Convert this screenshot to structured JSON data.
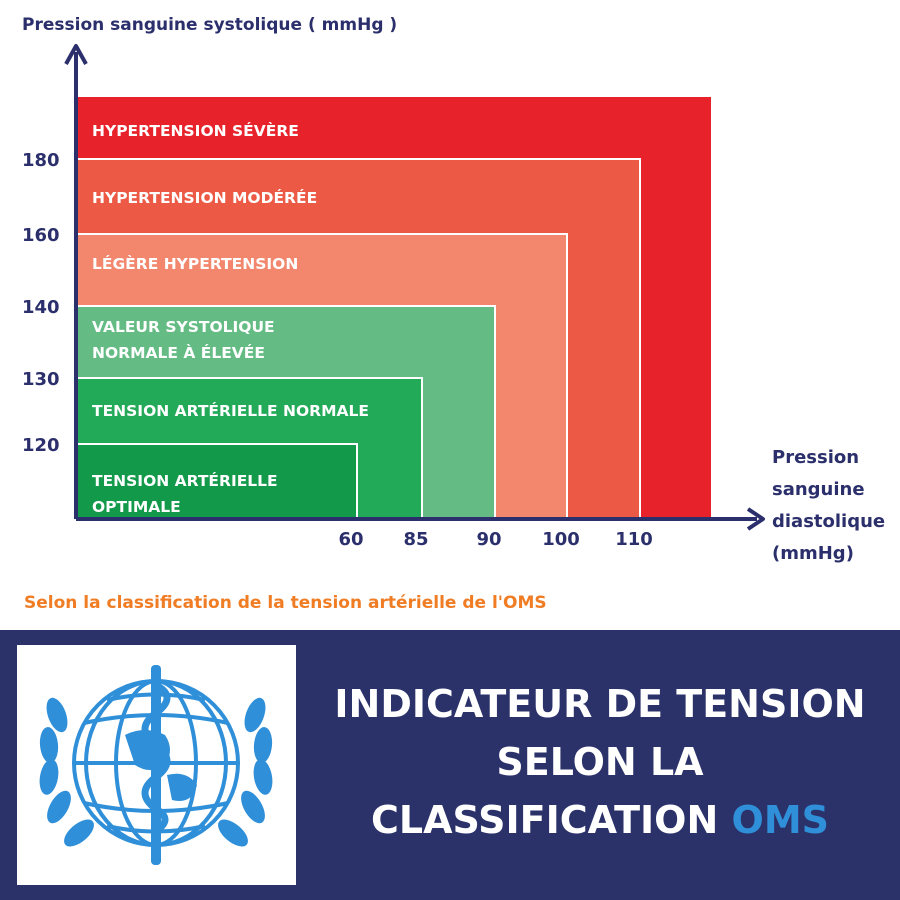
{
  "chart_data": {
    "type": "area",
    "title": "",
    "ylabel": "Pression sanguine systolique ( mmHg )",
    "xlabel": [
      "Pression",
      "sanguine",
      "diastolique",
      "(mmHg)"
    ],
    "x_ticks": [
      60,
      85,
      90,
      100,
      110
    ],
    "y_ticks": [
      120,
      130,
      140,
      160,
      180
    ],
    "zones": [
      {
        "label": [
          "HYPERTENSION SÉVÈRE"
        ],
        "systolic_max": null,
        "diastolic_max": null,
        "color": "#e8222a"
      },
      {
        "label": [
          "HYPERTENSION MODÉRÉE"
        ],
        "systolic_max": 180,
        "diastolic_max": 110,
        "color": "#ec5a46"
      },
      {
        "label": [
          "LÉGÈRE HYPERTENSION"
        ],
        "systolic_max": 160,
        "diastolic_max": 100,
        "color": "#f2876d"
      },
      {
        "label": [
          "VALEUR SYSTOLIQUE",
          "NORMALE À ÉLEVÉE"
        ],
        "systolic_max": 140,
        "diastolic_max": 90,
        "color": "#64bc84"
      },
      {
        "label": [
          "TENSION ARTÉRIELLE NORMALE"
        ],
        "systolic_max": 130,
        "diastolic_max": 85,
        "color": "#22aa58"
      },
      {
        "label": [
          "TENSION ARTÉRIELLE",
          "OPTIMALE"
        ],
        "systolic_max": 120,
        "diastolic_max": 60,
        "color": "#12994a"
      }
    ]
  },
  "source_note": "Selon la classification de la tension artérielle de l'OMS",
  "banner": {
    "title_lines": [
      "INDICATEUR DE TENSION",
      "SELON LA"
    ],
    "title_last_prefix": "CLASSIFICATION ",
    "title_last_accent": "OMS",
    "logo": "who-emblem-icon"
  },
  "colors": {
    "axis": "#2b2f6b",
    "banner_bg": "#2b3169",
    "accent": "#2f8fd8",
    "note": "#f07c24"
  }
}
